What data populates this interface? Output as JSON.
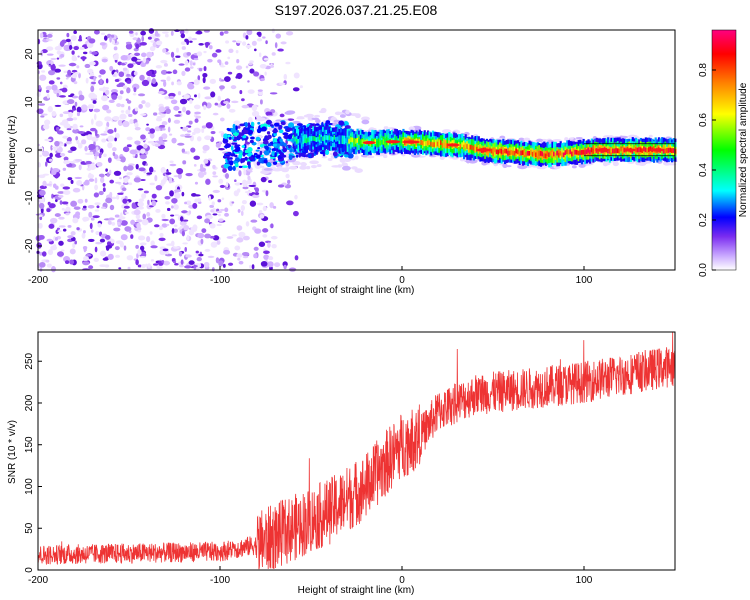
{
  "title": "S197.2026.037.21.25.E08",
  "chart_data": [
    {
      "type": "heatmap",
      "xlabel": "Height of straight line (km)",
      "ylabel": "Frequency (Hz)",
      "xlim": [
        -200,
        150
      ],
      "ylim": [
        -25,
        25
      ],
      "x_ticks": [
        -200,
        -100,
        0,
        100
      ],
      "y_ticks": [
        20,
        10,
        0,
        -10,
        -20
      ],
      "colorbar": {
        "label": "Normalized spectral amplitude",
        "range": [
          0,
          0.96
        ],
        "ticks": [
          0.0,
          0.2,
          0.4,
          0.6,
          0.8
        ],
        "colormap": [
          "#e6ccff",
          "#a066f0",
          "#5a10e0",
          "#0000ff",
          "#00ffff",
          "#00ff00",
          "#ffff00",
          "#ff8000",
          "#ff0000",
          "#ff0080"
        ]
      },
      "band_center_hz": [
        {
          "x": -95,
          "f": 0.5
        },
        {
          "x": -60,
          "f": 2
        },
        {
          "x": -40,
          "f": 2.5
        },
        {
          "x": -20,
          "f": 1.5
        },
        {
          "x": 0,
          "f": 1.8
        },
        {
          "x": 30,
          "f": 1
        },
        {
          "x": 45,
          "f": 0
        },
        {
          "x": 80,
          "f": -1
        },
        {
          "x": 110,
          "f": 0
        },
        {
          "x": 150,
          "f": 0
        }
      ]
    },
    {
      "type": "line",
      "xlabel": "Height of straight line (km)",
      "ylabel": "SNR (10 * v/v)",
      "xlim": [
        -200,
        150
      ],
      "ylim": [
        0,
        285
      ],
      "x_ticks": [
        -200,
        -100,
        0,
        100
      ],
      "y_ticks": [
        0,
        50,
        100,
        150,
        200,
        250
      ],
      "series": [
        {
          "name": "SNR",
          "color": "#ee3333",
          "trend": {
            "x": [
              -200,
              -150,
              -100,
              -80,
              -60,
              -40,
              -20,
              0,
              10,
              20,
              30,
              40,
              60,
              100,
              150
            ],
            "y": [
              18,
              20,
              22,
              30,
              50,
              70,
              100,
              150,
              160,
              190,
              200,
              210,
              215,
              225,
              245
            ]
          }
        }
      ]
    }
  ]
}
